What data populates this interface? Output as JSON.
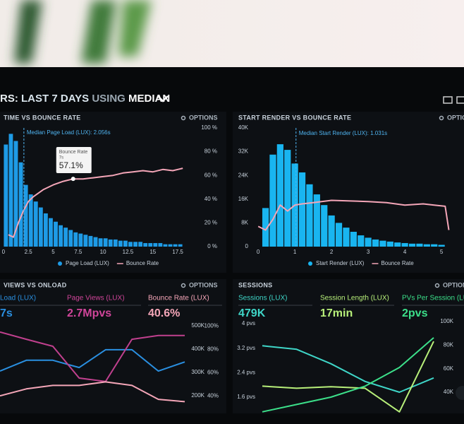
{
  "header": {
    "parts": [
      "RS:",
      "LAST 7 DAYS",
      "USING",
      "MEDIAN"
    ]
  },
  "chart_data": [
    {
      "type": "histogram",
      "title": "TIME VS BOUNCE RATE",
      "options": "OPTIONS",
      "bins": [
        0,
        0.5,
        1,
        1.5,
        2,
        2.5,
        3,
        3.5,
        4,
        4.5,
        5,
        5.5,
        6,
        6.5,
        7,
        7.5,
        8,
        8.5,
        9,
        9.5,
        10,
        10.5,
        11,
        11.5,
        12,
        12.5,
        13,
        13.5,
        14,
        14.5,
        15,
        15.5,
        16,
        16.5,
        17,
        17.5,
        18
      ],
      "series": [
        {
          "name": "Page Load (LUX)",
          "color": "#1e9be6",
          "type": "histogram",
          "values": [
            86,
            95,
            89,
            71,
            52,
            44,
            38,
            33,
            28,
            24,
            21,
            18,
            16,
            14,
            12,
            11,
            10,
            9,
            8,
            7,
            7,
            6,
            6,
            5,
            5,
            4,
            4,
            4,
            3,
            3,
            3,
            3,
            2,
            2,
            2,
            2
          ]
        },
        {
          "name": "Bounce Rate",
          "color": "#f4a6b8",
          "type": "line",
          "x": [
            0.5,
            1,
            1.5,
            2,
            2.5,
            3,
            4,
            5,
            6,
            7,
            8,
            9,
            10,
            11,
            12,
            13,
            14,
            15,
            16,
            17,
            18
          ],
          "values": [
            10,
            8,
            20,
            30,
            38,
            42,
            48,
            52,
            55,
            57,
            57,
            58,
            59,
            60,
            62,
            63,
            64,
            63,
            65,
            64,
            66
          ]
        }
      ],
      "xlim": [
        -0.2,
        18.2
      ],
      "xticks": [
        0,
        2.5,
        5,
        7.5,
        10,
        12.5,
        15,
        17.5
      ],
      "ylim": [
        0,
        100
      ],
      "yticks": [
        {
          "value": 0,
          "label": "0 %"
        },
        {
          "value": 20,
          "label": "20 %"
        },
        {
          "value": 40,
          "label": "40 %"
        },
        {
          "value": 60,
          "label": "60 %"
        },
        {
          "value": 80,
          "label": "80 %"
        },
        {
          "value": 100,
          "label": "100 %"
        }
      ],
      "annotation": {
        "text": "Median Page Load (LUX): 2.056s",
        "x": 2.056
      },
      "tooltip": {
        "title": "Bounce Rate",
        "subtitle": "7s",
        "value_label": "57.1%",
        "value": 57.1,
        "x": 7
      }
    },
    {
      "type": "histogram",
      "title": "START RENDER VS BOUNCE RATE",
      "options": "OPTIONS",
      "bins": [
        0.1,
        0.3,
        0.5,
        0.7,
        0.9,
        1.1,
        1.3,
        1.5,
        1.7,
        1.9,
        2.1,
        2.3,
        2.5,
        2.7,
        2.9,
        3.1,
        3.3,
        3.5,
        3.7,
        3.9,
        4.1,
        4.3,
        4.5,
        4.7,
        4.9,
        5.1
      ],
      "series": [
        {
          "name": "Start Render (LUX)",
          "color": "#19b5f0",
          "type": "histogram",
          "values": [
            13000,
            31000,
            34500,
            32600,
            28000,
            25000,
            21000,
            17600,
            14000,
            10500,
            8000,
            6400,
            5000,
            3800,
            3000,
            2400,
            2000,
            1700,
            1400,
            1200,
            1000,
            1000,
            800,
            800,
            600
          ]
        },
        {
          "name": "Bounce Rate",
          "color": "#f4a6b8",
          "type": "line",
          "axis": "y2",
          "x": [
            0,
            0.2,
            0.4,
            0.6,
            0.8,
            1,
            1.2,
            1.5,
            2,
            3,
            3.5,
            4,
            4.5,
            4.8,
            5.1,
            5.2
          ],
          "values": [
            17,
            14,
            23,
            35,
            30,
            35,
            36,
            37,
            39,
            38,
            37,
            35,
            36,
            35,
            34,
            14
          ]
        }
      ],
      "xlim": [
        -0.08,
        5.19
      ],
      "xticks": [
        0,
        1,
        2,
        3,
        4,
        5
      ],
      "ylim": [
        0,
        40000
      ],
      "yticks": [
        0,
        {
          "value": 8000,
          "label": "8K"
        },
        {
          "value": 16000,
          "label": "16K"
        },
        {
          "value": 24000,
          "label": "24K"
        },
        {
          "value": 32000,
          "label": "32K"
        },
        {
          "value": 40000,
          "label": "40K"
        }
      ],
      "y2lim": [
        0,
        100
      ],
      "annotation": {
        "text": "Median Start Render (LUX): 1.031s",
        "x": 1.031
      }
    },
    {
      "type": "line",
      "title": "VIEWS VS ONLOAD",
      "options": "OPTIONS",
      "stats": [
        {
          "label": "Load (LUX)",
          "value_label": "7s",
          "color": "#2a8fe0"
        },
        {
          "label": "Page Views (LUX)",
          "value_label": "2.7Mpvs",
          "color": "#d0459a"
        },
        {
          "label": "Bounce Rate (LUX)",
          "value_label": "40.6%",
          "color": "#f4a6b8"
        }
      ],
      "categories": [
        null,
        null,
        null,
        null,
        null,
        null,
        null,
        null
      ],
      "series": [
        {
          "name": "Load (LUX)",
          "color": "#2a8fe0",
          "values": [
            306000,
            352000,
            352000,
            321000,
            397000,
            397000,
            306000,
            345000
          ]
        },
        {
          "name": "Page Views (LUX)",
          "color": "#c0408e",
          "values": [
            473000,
            442000,
            412000,
            276000,
            261000,
            442000,
            458000,
            458000
          ]
        },
        {
          "name": "Bounce Rate (LUX)",
          "color": "#f4a6b8",
          "axis": "y2",
          "values": [
            40,
            46,
            49,
            49,
            52,
            49,
            37,
            35
          ]
        }
      ],
      "ylim": [
        155000,
        548000
      ],
      "yticks": [
        {
          "value": 200000,
          "label": "200K"
        },
        {
          "value": 300000,
          "label": "300K"
        },
        {
          "value": 400000,
          "label": "400K"
        },
        {
          "value": 500000,
          "label": "500K"
        }
      ],
      "y2lim": [
        31,
        110
      ],
      "y2ticks": [
        {
          "value": 40,
          "label": "40%"
        },
        {
          "value": 60,
          "label": "60%"
        },
        {
          "value": 80,
          "label": "80%"
        },
        {
          "value": 100,
          "label": "100%"
        }
      ]
    },
    {
      "type": "line",
      "title": "SESSIONS",
      "options": "OPTIONS",
      "stats": [
        {
          "label": "Sessions (LUX)",
          "value_label": "479K",
          "color": "#3fd6c8"
        },
        {
          "label": "Session Length (LUX)",
          "value_label": "17min",
          "color": "#b8f07a"
        },
        {
          "label": "PVs Per Session (LUX)",
          "value_label": "2pvs",
          "color": "#3ce08a"
        }
      ],
      "categories": [
        null,
        null,
        null,
        null,
        null,
        null
      ],
      "series": [
        {
          "name": "Sessions (LUX)",
          "color": "#3fd6c8",
          "axis": "y2",
          "values": [
            79400,
            76400,
            64200,
            49100,
            40000,
            52100
          ]
        },
        {
          "name": "Session Length (LUX)",
          "color": "#b8f07a",
          "values": [
            1.96,
            1.89,
            1.94,
            1.89,
            1.12,
            3.42
          ]
        },
        {
          "name": "PVs Per Session (LUX)",
          "color": "#3ce08a",
          "values": [
            1.12,
            1.36,
            1.6,
            1.96,
            2.57,
            3.54
          ]
        }
      ],
      "ylim": [
        1.3,
        4.3
      ],
      "yticks": [
        {
          "value": 1.6,
          "label": "1.6 pvs"
        },
        {
          "value": 2.4,
          "label": "2.4 pvs"
        },
        {
          "value": 3.2,
          "label": "3.2 pvs"
        },
        {
          "value": 4,
          "label": "4 pvs"
        }
      ],
      "y2lim": [
        28000,
        106000
      ],
      "y2ticks": [
        {
          "value": 40000,
          "label": "40K"
        },
        {
          "value": 60000,
          "label": "60K"
        },
        {
          "value": 80000,
          "label": "80K"
        },
        {
          "value": 100000,
          "label": "100K"
        }
      ]
    }
  ]
}
